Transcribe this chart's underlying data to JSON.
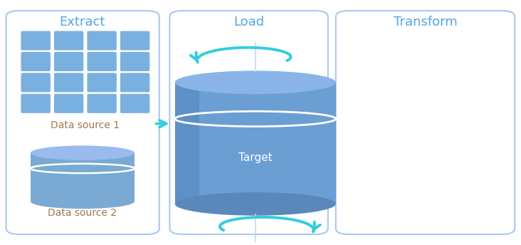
{
  "bg_color": "#ffffff",
  "box_border_color": "#a8c8f0",
  "section_title_color": "#4da6e8",
  "label_color": "#a07850",
  "grid_fill": "#7ab0e0",
  "arrow_color": "#33ccdd",
  "small_cyl_body": "#7aaad4",
  "small_cyl_top": "#9bbfe8",
  "large_cyl_body": "#6699cc",
  "large_cyl_side": "#5580bb",
  "large_cyl_top": "#88aadd",
  "target_label_color": "#ffffff",
  "ds1_label": "Data source 1",
  "ds2_label": "Data source 2",
  "target_label": "Target",
  "titles": [
    "Extract",
    "Load",
    "Transform"
  ],
  "font_size_title": 13,
  "font_size_label": 10,
  "font_size_target": 11
}
